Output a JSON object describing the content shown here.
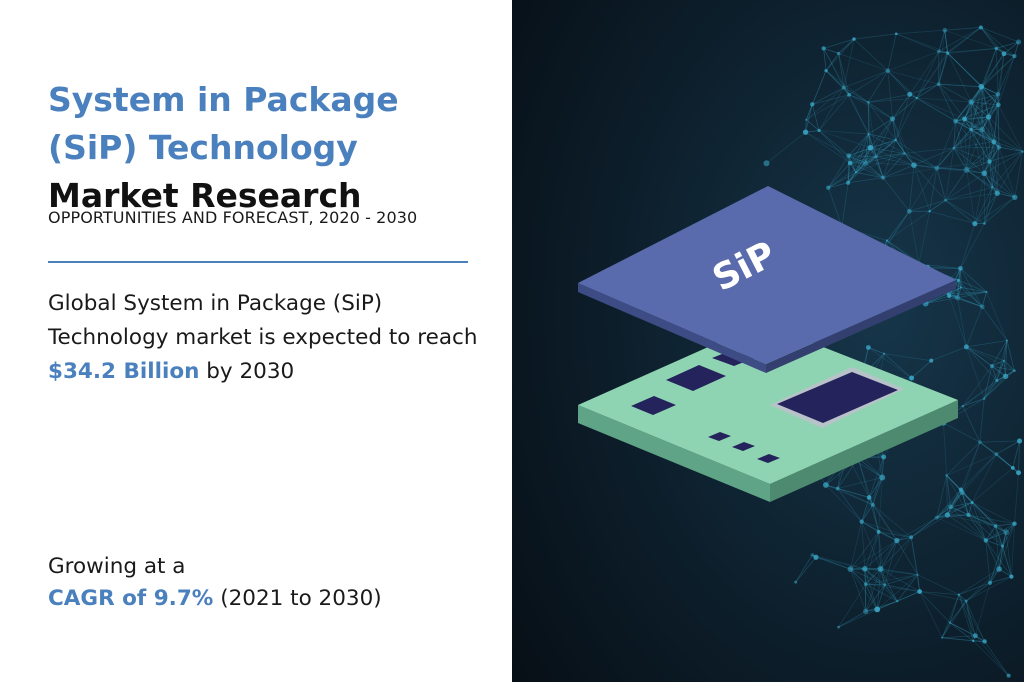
{
  "title": {
    "highlight": "System in Package (SiP) Technology",
    "rest": "Market Research"
  },
  "subtitle": "OPPORTUNITIES AND FORECAST, 2020 - 2030",
  "forecast": {
    "before": "Global System in Package (SiP) Technology market is expected to reach",
    "value": "$34.2 Billion",
    "after": "by 2030"
  },
  "cagr": {
    "line1": "Growing at a",
    "value": "CAGR of 9.7%",
    "period": "(2021 to 2030)"
  },
  "illustration": {
    "chip_label": "SiP",
    "colors": {
      "background": "#0c1a24",
      "network": "#3aa8c8",
      "top_chip": "#5a6bad",
      "board": "#8fd4b2",
      "component": "#24235c"
    }
  }
}
